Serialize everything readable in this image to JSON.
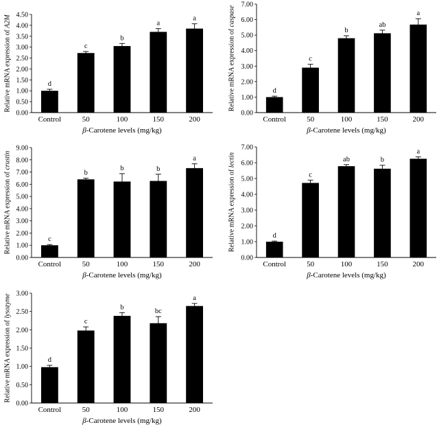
{
  "chart_data": [
    {
      "type": "bar",
      "categories": [
        "Control",
        "50",
        "100",
        "150",
        "200"
      ],
      "values": [
        1.0,
        2.73,
        3.05,
        3.7,
        3.85
      ],
      "errors": [
        0.07,
        0.07,
        0.12,
        0.15,
        0.22
      ],
      "labels": [
        "d",
        "c",
        "b",
        "a",
        "a"
      ],
      "ylim": [
        0,
        4.5
      ],
      "ytick_step": 0.5,
      "ylabel_prefix": "Relative mRNA expression of ",
      "ylabel_gene": "A2M",
      "xlabel_beta": "β",
      "xlabel_rest": "-Carotene levels (mg/kg)",
      "bar_color": "#000000"
    },
    {
      "type": "bar",
      "categories": [
        "Control",
        "50",
        "100",
        "150",
        "200"
      ],
      "values": [
        1.0,
        2.9,
        4.8,
        5.12,
        5.68
      ],
      "errors": [
        0.06,
        0.22,
        0.16,
        0.2,
        0.38
      ],
      "labels": [
        "d",
        "c",
        "b",
        "ab",
        "a"
      ],
      "ylim": [
        0,
        7
      ],
      "ytick_step": 1,
      "ylabel_prefix": "Relative mRNA expression of ",
      "ylabel_gene": "caspase",
      "xlabel_beta": "β",
      "xlabel_rest": "-Carotene levels (mg/kg)",
      "bar_color": "#000000"
    },
    {
      "type": "bar",
      "categories": [
        "Control",
        "50",
        "100",
        "150",
        "200"
      ],
      "values": [
        1.0,
        6.4,
        6.22,
        6.27,
        7.32
      ],
      "errors": [
        0.06,
        0.1,
        0.65,
        0.55,
        0.35
      ],
      "labels": [
        "c",
        "b",
        "b",
        "b",
        "a"
      ],
      "ylim": [
        0,
        9
      ],
      "ytick_step": 1,
      "ylabel_prefix": "Relative mRNA expression of ",
      "ylabel_gene": "crustin",
      "xlabel_beta": "β",
      "xlabel_rest": "-Carotene levels (mg/kg)",
      "bar_color": "#000000"
    },
    {
      "type": "bar",
      "categories": [
        "Control",
        "50",
        "100",
        "150",
        "200"
      ],
      "values": [
        1.0,
        4.72,
        5.78,
        5.62,
        6.25
      ],
      "errors": [
        0.04,
        0.18,
        0.1,
        0.22,
        0.12
      ],
      "labels": [
        "d",
        "c",
        "ab",
        "b",
        "a"
      ],
      "ylim": [
        0,
        7
      ],
      "ytick_step": 1,
      "ylabel_prefix": "Relative mRNA expression of ",
      "ylabel_gene": "lectin",
      "xlabel_beta": "β",
      "xlabel_rest": "-Carotene levels (mg/kg)",
      "bar_color": "#000000"
    },
    {
      "type": "bar",
      "categories": [
        "Control",
        "50",
        "100",
        "150",
        "200"
      ],
      "values": [
        0.98,
        1.98,
        2.38,
        2.18,
        2.65
      ],
      "errors": [
        0.05,
        0.1,
        0.09,
        0.18,
        0.07
      ],
      "labels": [
        "d",
        "c",
        "b",
        "bc",
        "a"
      ],
      "ylim": [
        0,
        3
      ],
      "ytick_step": 0.5,
      "ylabel_prefix": "Relative mRNA expression of ",
      "ylabel_gene": "lysozyme",
      "xlabel_beta": "β",
      "xlabel_rest": "-Carotene levels (mg/kg)",
      "bar_color": "#000000"
    }
  ]
}
